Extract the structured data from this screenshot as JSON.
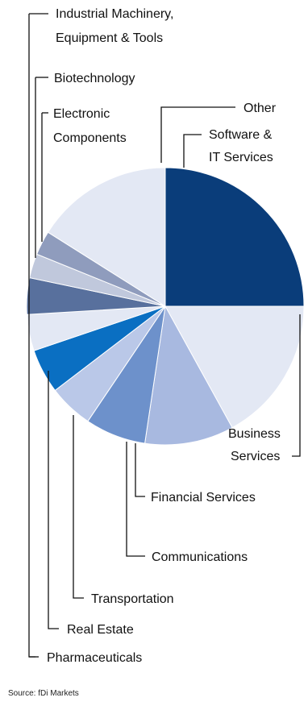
{
  "chart_data": {
    "type": "pie",
    "title": "",
    "slices": [
      {
        "label": "Software & IT Services",
        "value": 26.5,
        "color": "#0a3d7a"
      },
      {
        "label": "Business Services",
        "value": 18.0,
        "color": "#e3e8f4"
      },
      {
        "label": "Financial Services",
        "value": 11.0,
        "color": "#a8b9e0"
      },
      {
        "label": "Communications",
        "value": 7.5,
        "color": "#6d91cb"
      },
      {
        "label": "Transportation",
        "value": 5.5,
        "color": "#bac8e8"
      },
      {
        "label": "Real Estate",
        "value": 5.5,
        "color": "#0a6fc2"
      },
      {
        "label": "Pharmaceuticals",
        "value": 4.5,
        "color": "#e3e8f4"
      },
      {
        "label": "Industrial Machinery, Equipment & Tools",
        "value": 4.5,
        "color": "#58709d"
      },
      {
        "label": "Biotechnology",
        "value": 3.0,
        "color": "#c0c8dc"
      },
      {
        "label": "Electronic Components",
        "value": 3.0,
        "color": "#8f9cbd"
      },
      {
        "label": "Other",
        "value": 17.0,
        "color": "#e3e8f4"
      }
    ],
    "labels_display": {
      "software": [
        "Software &",
        "IT Services"
      ],
      "other": [
        "Other"
      ],
      "electronic": [
        "Electronic",
        "Components"
      ],
      "biotech": [
        "Biotechnology"
      ],
      "industrial": [
        "Industrial Machinery,",
        "Equipment & Tools"
      ],
      "business": [
        "Business",
        "Services"
      ],
      "financial": [
        "Financial Services"
      ],
      "communications": [
        "Communications"
      ],
      "transportation": [
        "Transportation"
      ],
      "real_estate": [
        "Real Estate"
      ],
      "pharma": [
        "Pharmaceuticals"
      ]
    }
  },
  "source": "Source: fDi Markets"
}
